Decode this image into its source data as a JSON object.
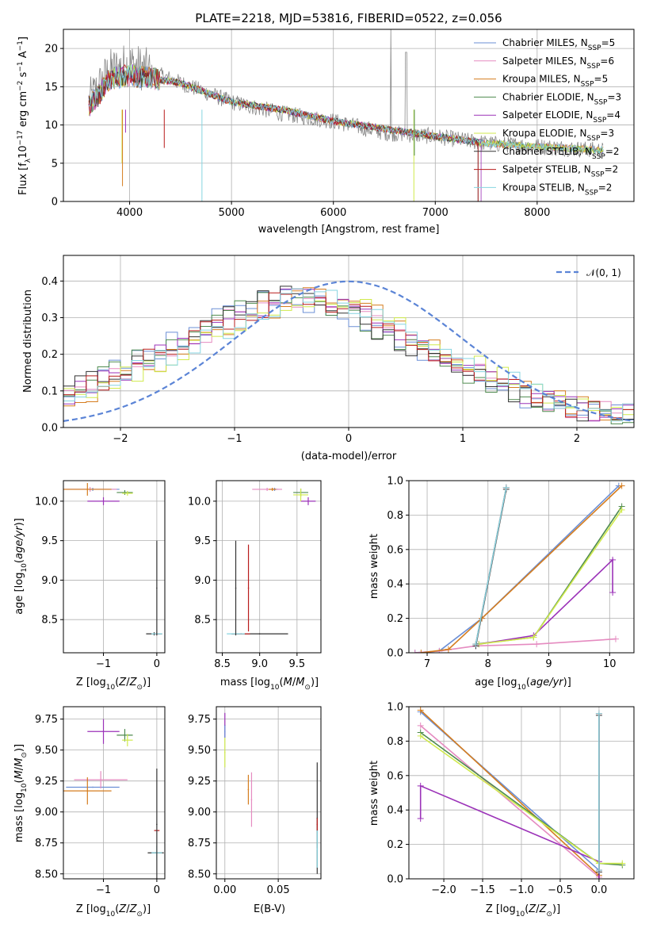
{
  "figure": {
    "title": "PLATE=2218, MJD=53816, FIBERID=0522, z=0.056"
  },
  "models": [
    {
      "name": "Chabrier MILES",
      "nssp": "5",
      "color": "#6b8fd6"
    },
    {
      "name": "Salpeter MILES",
      "nssp": "6",
      "color": "#e58bc0"
    },
    {
      "name": "Kroupa MILES",
      "nssp": "5",
      "color": "#d57d1f"
    },
    {
      "name": "Chabrier ELODIE",
      "nssp": "3",
      "color": "#4f8b4f"
    },
    {
      "name": "Salpeter ELODIE",
      "nssp": "4",
      "color": "#9b32b8"
    },
    {
      "name": "Kroupa ELODIE",
      "nssp": "3",
      "color": "#d0ea4c"
    },
    {
      "name": "Chabrier STELIB",
      "nssp": "2",
      "color": "#333333"
    },
    {
      "name": "Salpeter STELIB",
      "nssp": "2",
      "color": "#b81c1c"
    },
    {
      "name": "Kroupa STELIB",
      "nssp": "2",
      "color": "#86d4e0"
    }
  ],
  "chart_data": [
    {
      "id": "spectrum",
      "type": "line",
      "title": "PLATE=2218, MJD=53816, FIBERID=0522, z=0.056",
      "xlabel": "wavelength [Angstrom, rest frame]",
      "ylabel": "Flux [f_λ 10^-17 erg cm^-2 s^-1 A^-1]",
      "xlim": [
        3350,
        8950
      ],
      "ylim": [
        0,
        22.5
      ],
      "xticks": [
        4000,
        5000,
        6000,
        7000,
        8000
      ],
      "yticks": [
        0,
        5,
        10,
        15,
        20
      ],
      "data_color": "#888888",
      "data_envelope": [
        [
          3600,
          13.0
        ],
        [
          3800,
          17.0
        ],
        [
          4000,
          18.0
        ],
        [
          4500,
          15.5
        ],
        [
          5000,
          13.0
        ],
        [
          5500,
          11.5
        ],
        [
          6000,
          10.5
        ],
        [
          6500,
          9.0
        ],
        [
          7000,
          8.5
        ],
        [
          7500,
          7.6
        ],
        [
          8000,
          7.2
        ],
        [
          8500,
          6.8
        ],
        [
          8650,
          6.7
        ]
      ],
      "model_envelope": [
        [
          3600,
          12.5
        ],
        [
          3700,
          14.0
        ],
        [
          3800,
          16.0
        ],
        [
          4000,
          16.5
        ],
        [
          4500,
          15.5
        ],
        [
          5000,
          13.0
        ],
        [
          5500,
          12.0
        ],
        [
          6000,
          10.5
        ],
        [
          6500,
          9.5
        ],
        [
          7000,
          8.5
        ],
        [
          7500,
          7.6
        ],
        [
          8000,
          7.2
        ],
        [
          8500,
          6.8
        ],
        [
          8650,
          6.7
        ]
      ],
      "grid": true,
      "legend": "top-right"
    },
    {
      "id": "residuals",
      "type": "line",
      "xlabel": "(data-model)/error",
      "ylabel": "Normed distribution",
      "xlim": [
        -2.5,
        2.5
      ],
      "ylim": [
        0,
        0.47
      ],
      "xticks": [
        -2,
        -1,
        0,
        1,
        2
      ],
      "yticks": [
        0.0,
        0.1,
        0.2,
        0.3,
        0.4
      ],
      "reference": {
        "name": "N(0,1)",
        "mu": 0,
        "sigma": 1,
        "color": "#5b84d6"
      },
      "histogram_bin_width": 0.1,
      "histogram_shape": [
        [
          -2.5,
          0.08
        ],
        [
          -2.0,
          0.15
        ],
        [
          -1.5,
          0.22
        ],
        [
          -1.0,
          0.3
        ],
        [
          -0.5,
          0.36
        ],
        [
          0.0,
          0.33
        ],
        [
          0.5,
          0.24
        ],
        [
          1.0,
          0.17
        ],
        [
          1.5,
          0.1
        ],
        [
          2.0,
          0.05
        ],
        [
          2.5,
          0.035
        ]
      ],
      "grid": true,
      "legend": "top-right"
    },
    {
      "id": "age_vs_Z",
      "type": "scatter",
      "xlabel": "Z [log10(Z/Z⊙)]",
      "ylabel": "age  [log10(age/yr)]",
      "xlim": [
        -1.75,
        0.15
      ],
      "ylim": [
        8.08,
        10.26
      ],
      "xticks": [
        -1,
        0
      ],
      "yticks": [
        8.5,
        9.0,
        9.5,
        10.0
      ],
      "points": [
        {
          "m": 0,
          "x": -1.2,
          "y": 10.15,
          "xerr": 0.5,
          "yerr": 0.02
        },
        {
          "m": 1,
          "x": -1.25,
          "y": 10.15,
          "xerr": 0.5,
          "yerr": 0.03
        },
        {
          "m": 2,
          "x": -1.3,
          "y": 10.15,
          "xerr": 0.45,
          "yerr": 0.08
        },
        {
          "m": 3,
          "x": -0.6,
          "y": 10.11,
          "xerr": 0.15,
          "yerr": 0.03
        },
        {
          "m": 4,
          "x": -1.0,
          "y": 10.0,
          "xerr": 0.3,
          "yerr": 0.05
        },
        {
          "m": 5,
          "x": -0.55,
          "y": 10.1,
          "xerr": 0.1,
          "yerr": 0.03
        },
        {
          "m": 6,
          "x": -0.05,
          "y": 8.32,
          "xerr": 0.15,
          "yerr": 0.02
        },
        {
          "m": 7,
          "x": 0.0,
          "y": 8.32,
          "xerr": 0.05,
          "yerr": 0.02
        },
        {
          "m": 8,
          "x": 0.0,
          "y": 8.32,
          "xerr": 0.1,
          "yerr": 0.0
        },
        {
          "m": 6,
          "x": 0.0,
          "y": 8.9,
          "xerr": 0.0,
          "yerr": 0.6
        }
      ],
      "grid": true
    },
    {
      "id": "age_vs_mass",
      "type": "scatter",
      "xlabel": "mass [log10(M/M⊙)]",
      "ylabel": "",
      "xlim": [
        8.42,
        9.82
      ],
      "ylim": [
        8.08,
        10.26
      ],
      "xticks": [
        8.5,
        9.0,
        9.5
      ],
      "yticks": [
        8.5,
        9.0,
        9.5,
        10.0
      ],
      "points": [
        {
          "m": 0,
          "x": 9.2,
          "y": 10.15,
          "xerr": 0.05,
          "yerr": 0.02
        },
        {
          "m": 1,
          "x": 9.1,
          "y": 10.15,
          "xerr": 0.2,
          "yerr": 0.02
        },
        {
          "m": 2,
          "x": 9.17,
          "y": 10.15,
          "xerr": 0.05,
          "yerr": 0.02
        },
        {
          "m": 3,
          "x": 9.55,
          "y": 10.11,
          "xerr": 0.1,
          "yerr": 0.05
        },
        {
          "m": 4,
          "x": 9.65,
          "y": 10.0,
          "xerr": 0.1,
          "yerr": 0.05
        },
        {
          "m": 5,
          "x": 9.55,
          "y": 10.08,
          "xerr": 0.1,
          "yerr": 0.08
        },
        {
          "m": 6,
          "x": 9.0,
          "y": 8.32,
          "xerr": 0.38,
          "yerr": 0.0
        },
        {
          "m": 7,
          "x": 8.75,
          "y": 8.32,
          "xerr": 0.12,
          "yerr": 0.0
        },
        {
          "m": 8,
          "x": 8.68,
          "y": 8.32,
          "xerr": 0.12,
          "yerr": 0.0
        },
        {
          "m": 6,
          "x": 8.68,
          "y": 8.9,
          "xerr": 0.0,
          "yerr": 0.6
        },
        {
          "m": 7,
          "x": 8.85,
          "y": 8.9,
          "xerr": 0.0,
          "yerr": 0.55
        }
      ],
      "grid": true
    },
    {
      "id": "weight_vs_age",
      "type": "line",
      "xlabel": "age  [log10(age/yr)]",
      "ylabel": "mass weight",
      "xlim": [
        6.7,
        10.4
      ],
      "ylim": [
        0,
        1.0
      ],
      "xticks": [
        7,
        8,
        9,
        10
      ],
      "yticks": [
        0.0,
        0.2,
        0.4,
        0.6,
        0.8,
        1.0
      ],
      "series": [
        {
          "m": 0,
          "x": [
            6.8,
            7.2,
            7.9,
            10.15
          ],
          "y": [
            0.0,
            0.01,
            0.2,
            0.97
          ]
        },
        {
          "m": 1,
          "x": [
            6.8,
            7.2,
            7.8,
            8.8,
            10.1
          ],
          "y": [
            0.0,
            0.01,
            0.04,
            0.05,
            0.08
          ]
        },
        {
          "m": 2,
          "x": [
            6.9,
            7.35,
            7.9,
            10.2
          ],
          "y": [
            0.0,
            0.02,
            0.2,
            0.97
          ]
        },
        {
          "m": 3,
          "x": [
            7.8,
            8.75,
            10.2
          ],
          "y": [
            0.05,
            0.09,
            0.85
          ]
        },
        {
          "m": 4,
          "x": [
            7.85,
            8.75,
            10.05,
            10.05
          ],
          "y": [
            0.05,
            0.1,
            0.54,
            0.35
          ]
        },
        {
          "m": 5,
          "x": [
            7.85,
            8.75,
            10.2
          ],
          "y": [
            0.05,
            0.09,
            0.83
          ]
        },
        {
          "m": 6,
          "x": [
            7.8,
            8.3
          ],
          "y": [
            0.04,
            0.95
          ]
        },
        {
          "m": 7,
          "x": [
            7.8,
            8.3
          ],
          "y": [
            0.05,
            0.96
          ]
        },
        {
          "m": 8,
          "x": [
            7.8,
            8.3
          ],
          "y": [
            0.05,
            0.96
          ]
        }
      ],
      "grid": true
    },
    {
      "id": "mass_vs_Z",
      "type": "scatter",
      "xlabel": "Z [log10(Z/Z⊙)]",
      "ylabel": "mass [log10(M/M⊙)]",
      "xlim": [
        -1.75,
        0.15
      ],
      "ylim": [
        8.46,
        9.85
      ],
      "xticks": [
        -1,
        0
      ],
      "yticks": [
        8.5,
        8.75,
        9.0,
        9.25,
        9.5,
        9.75
      ],
      "points": [
        {
          "m": 0,
          "x": -1.2,
          "y": 9.2,
          "xerr": 0.5,
          "yerr": 0.0
        },
        {
          "m": 1,
          "x": -1.05,
          "y": 9.26,
          "xerr": 0.5,
          "yerr": 0.07
        },
        {
          "m": 2,
          "x": -1.3,
          "y": 9.17,
          "xerr": 0.45,
          "yerr": 0.11
        },
        {
          "m": 3,
          "x": -0.6,
          "y": 9.62,
          "xerr": 0.15,
          "yerr": 0.05
        },
        {
          "m": 4,
          "x": -1.0,
          "y": 9.65,
          "xerr": 0.3,
          "yerr": 0.1
        },
        {
          "m": 5,
          "x": -0.55,
          "y": 9.58,
          "xerr": 0.1,
          "yerr": 0.05
        },
        {
          "m": 6,
          "x": -0.02,
          "y": 8.67,
          "xerr": 0.15,
          "yerr": 0.0
        },
        {
          "m": 7,
          "x": 0.0,
          "y": 8.85,
          "xerr": 0.05,
          "yerr": 0.0
        },
        {
          "m": 8,
          "x": 0.0,
          "y": 8.67,
          "xerr": 0.1,
          "yerr": 0.06
        },
        {
          "m": 6,
          "x": 0.0,
          "y": 8.9,
          "xerr": 0.0,
          "yerr": 0.45
        }
      ],
      "grid": true
    },
    {
      "id": "mass_vs_ebv",
      "type": "scatter",
      "xlabel": "E(B-V)",
      "ylabel": "",
      "xlim": [
        -0.008,
        0.09
      ],
      "ylim": [
        8.46,
        9.85
      ],
      "xticks": [
        0.0,
        0.05
      ],
      "yticks": [
        8.5,
        8.75,
        9.0,
        9.25,
        9.5,
        9.75
      ],
      "points": [
        {
          "m": 4,
          "x": 0.0,
          "y": 9.7,
          "xerr": 0.0,
          "yerr": 0.1
        },
        {
          "m": 5,
          "x": 0.0,
          "y": 9.48,
          "xerr": 0.0,
          "yerr": 0.12
        },
        {
          "m": 0,
          "x": 0.0,
          "y": 9.65,
          "xerr": 0.0,
          "yerr": 0.05
        },
        {
          "m": 2,
          "x": 0.022,
          "y": 9.18,
          "xerr": 0.0,
          "yerr": 0.12
        },
        {
          "m": 1,
          "x": 0.025,
          "y": 9.1,
          "xerr": 0.0,
          "yerr": 0.22
        },
        {
          "m": 6,
          "x": 0.0865,
          "y": 8.95,
          "xerr": 0.0,
          "yerr": 0.45
        },
        {
          "m": 7,
          "x": 0.0865,
          "y": 8.9,
          "xerr": 0.0,
          "yerr": 0.05
        },
        {
          "m": 8,
          "x": 0.0865,
          "y": 8.7,
          "xerr": 0.0,
          "yerr": 0.15
        }
      ],
      "grid": true
    },
    {
      "id": "weight_vs_Z",
      "type": "line",
      "xlabel": "Z [log10(Z/Z⊙)]",
      "ylabel": "mass weight",
      "xlim": [
        -2.45,
        0.45
      ],
      "ylim": [
        0,
        1.0
      ],
      "xticks": [
        -2.0,
        -1.5,
        -1.0,
        -0.5,
        0.0
      ],
      "yticks": [
        0.0,
        0.2,
        0.4,
        0.6,
        0.8,
        1.0
      ],
      "series": [
        {
          "m": 0,
          "x": [
            -2.3,
            0.0,
            0.0
          ],
          "y": [
            0.97,
            0.05,
            0.0
          ]
        },
        {
          "m": 1,
          "x": [
            -2.3,
            0.0,
            0.0
          ],
          "y": [
            0.89,
            0.01,
            0.0
          ]
        },
        {
          "m": 2,
          "x": [
            -2.3,
            0.0,
            0.0
          ],
          "y": [
            0.98,
            0.02,
            0.0
          ]
        },
        {
          "m": 3,
          "x": [
            -2.3,
            0.0,
            0.3
          ],
          "y": [
            0.85,
            0.09,
            0.08
          ]
        },
        {
          "m": 4,
          "x": [
            -2.3,
            -2.3,
            0.0,
            0.0
          ],
          "y": [
            0.35,
            0.54,
            0.1,
            0.0
          ]
        },
        {
          "m": 5,
          "x": [
            -2.3,
            0.0,
            0.3
          ],
          "y": [
            0.83,
            0.09,
            0.09
          ]
        },
        {
          "m": 6,
          "x": [
            0.0,
            0.0
          ],
          "y": [
            0.04,
            0.95
          ]
        },
        {
          "m": 7,
          "x": [
            0.0,
            0.0
          ],
          "y": [
            0.05,
            0.96
          ]
        },
        {
          "m": 8,
          "x": [
            0.0,
            0.0
          ],
          "y": [
            0.05,
            0.96
          ]
        }
      ],
      "grid": true
    }
  ]
}
